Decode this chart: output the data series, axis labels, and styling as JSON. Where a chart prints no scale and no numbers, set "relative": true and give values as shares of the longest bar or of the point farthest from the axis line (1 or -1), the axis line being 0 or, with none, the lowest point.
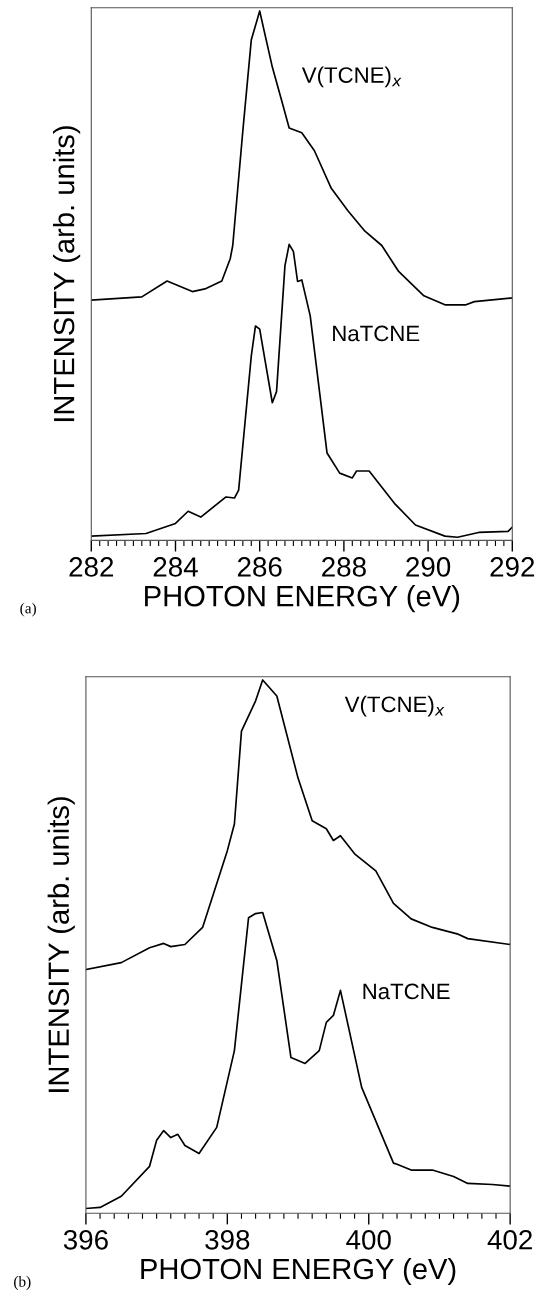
{
  "chart_data": [
    {
      "type": "line",
      "xlabel": "PHOTON ENERGY (eV)",
      "ylabel": "INTENSITY (arb. units)",
      "relative": true,
      "tick_labels": "x",
      "legend": false,
      "grid": false,
      "annotations": [
        "(a)"
      ],
      "xlim": [
        282,
        292
      ],
      "xticks": [
        282,
        {
          "value": 282.2,
          "label": null
        },
        {
          "value": 282.4,
          "label": null
        },
        {
          "value": 282.6,
          "label": null
        },
        {
          "value": 282.8,
          "label": null
        },
        {
          "value": 283,
          "label": null
        },
        {
          "value": 283.2,
          "label": null
        },
        {
          "value": 283.4,
          "label": null
        },
        {
          "value": 283.6,
          "label": null
        },
        {
          "value": 283.8,
          "label": null
        },
        284,
        {
          "value": 284.2,
          "label": null
        },
        {
          "value": 284.4,
          "label": null
        },
        {
          "value": 284.6,
          "label": null
        },
        {
          "value": 284.8,
          "label": null
        },
        {
          "value": 285,
          "label": null
        },
        {
          "value": 285.2,
          "label": null
        },
        {
          "value": 285.4,
          "label": null
        },
        {
          "value": 285.6,
          "label": null
        },
        {
          "value": 285.8,
          "label": null
        },
        286,
        {
          "value": 286.2,
          "label": null
        },
        {
          "value": 286.4,
          "label": null
        },
        {
          "value": 286.6,
          "label": null
        },
        {
          "value": 286.8,
          "label": null
        },
        {
          "value": 287,
          "label": null
        },
        {
          "value": 287.2,
          "label": null
        },
        {
          "value": 287.4,
          "label": null
        },
        {
          "value": 287.6,
          "label": null
        },
        {
          "value": 287.8,
          "label": null
        },
        288,
        {
          "value": 288.2,
          "label": null
        },
        {
          "value": 288.4,
          "label": null
        },
        {
          "value": 288.6,
          "label": null
        },
        {
          "value": 288.8,
          "label": null
        },
        {
          "value": 289,
          "label": null
        },
        {
          "value": 289.2,
          "label": null
        },
        {
          "value": 289.4,
          "label": null
        },
        {
          "value": 289.6,
          "label": null
        },
        {
          "value": 289.8,
          "label": null
        },
        290,
        {
          "value": 290.2,
          "label": null
        },
        {
          "value": 290.4,
          "label": null
        },
        {
          "value": 290.6,
          "label": null
        },
        {
          "value": 290.8,
          "label": null
        },
        {
          "value": 291,
          "label": null
        },
        {
          "value": 291.2,
          "label": null
        },
        {
          "value": 291.4,
          "label": null
        },
        {
          "value": 291.6,
          "label": null
        },
        {
          "value": 291.8,
          "label": null
        },
        292
      ],
      "series": [
        {
          "name": "V(TCNE)$_{x}$",
          "color": "#000000",
          "x": [
            282.0,
            283.2,
            283.8,
            284.4,
            284.7,
            285.1,
            285.3,
            285.36,
            285.6,
            285.8,
            286.0,
            286.3,
            286.5,
            286.7,
            287.0,
            287.3,
            287.7,
            288.1,
            288.5,
            288.9,
            289.3,
            289.9,
            290.4,
            290.9,
            291.1,
            292.0
          ],
          "values": [
            0.454,
            0.46,
            0.49,
            0.47,
            0.475,
            0.49,
            0.532,
            0.557,
            0.774,
            0.945,
            1.0,
            0.894,
            0.837,
            0.779,
            0.77,
            0.736,
            0.665,
            0.622,
            0.584,
            0.557,
            0.508,
            0.462,
            0.445,
            0.445,
            0.451,
            0.458
          ]
        },
        {
          "name": "NaTCNE",
          "color": "#000000",
          "x": [
            282.0,
            283.3,
            284.0,
            284.3,
            284.6,
            285.2,
            285.4,
            285.5,
            285.8,
            285.9,
            286.0,
            286.3,
            286.4,
            286.6,
            286.7,
            286.8,
            286.9,
            287.0,
            287.2,
            287.6,
            287.9,
            288.2,
            288.3,
            288.6,
            289.2,
            289.7,
            290.4,
            290.7,
            291.2,
            291.9,
            292.0
          ],
          "values": [
            0.008,
            0.013,
            0.032,
            0.055,
            0.044,
            0.082,
            0.08,
            0.095,
            0.348,
            0.405,
            0.399,
            0.26,
            0.281,
            0.519,
            0.559,
            0.546,
            0.489,
            0.492,
            0.424,
            0.165,
            0.127,
            0.118,
            0.131,
            0.131,
            0.07,
            0.029,
            0.008,
            0.006,
            0.015,
            0.017,
            0.025
          ]
        }
      ]
    },
    {
      "type": "line",
      "xlabel": "PHOTON ENERGY (eV)",
      "ylabel": "INTENSITY (arb. units)",
      "relative": true,
      "tick_labels": "x",
      "legend": false,
      "grid": false,
      "annotations": [
        "(b)"
      ],
      "xlim": [
        396,
        402
      ],
      "xticks": [
        396,
        {
          "value": 396.2,
          "label": null
        },
        {
          "value": 396.4,
          "label": null
        },
        {
          "value": 396.6,
          "label": null
        },
        {
          "value": 396.8,
          "label": null
        },
        {
          "value": 397,
          "label": null
        },
        {
          "value": 397.2,
          "label": null
        },
        {
          "value": 397.4,
          "label": null
        },
        {
          "value": 397.6,
          "label": null
        },
        {
          "value": 397.8,
          "label": null
        },
        398,
        {
          "value": 398.2,
          "label": null
        },
        {
          "value": 398.4,
          "label": null
        },
        {
          "value": 398.6,
          "label": null
        },
        {
          "value": 398.8,
          "label": null
        },
        {
          "value": 399,
          "label": null
        },
        {
          "value": 399.2,
          "label": null
        },
        {
          "value": 399.4,
          "label": null
        },
        {
          "value": 399.6,
          "label": null
        },
        {
          "value": 399.8,
          "label": null
        },
        400,
        {
          "value": 400.2,
          "label": null
        },
        {
          "value": 400.4,
          "label": null
        },
        {
          "value": 400.6,
          "label": null
        },
        {
          "value": 400.8,
          "label": null
        },
        {
          "value": 401,
          "label": null
        },
        {
          "value": 401.2,
          "label": null
        },
        {
          "value": 401.4,
          "label": null
        },
        {
          "value": 401.6,
          "label": null
        },
        {
          "value": 401.8,
          "label": null
        },
        402
      ],
      "series": [
        {
          "name": "V(TCNE)$_{x}$",
          "color": "#000000",
          "x": [
            396.0,
            396.5,
            396.9,
            397.1,
            397.2,
            397.4,
            397.65,
            398.0,
            398.1,
            398.2,
            398.4,
            398.5,
            398.7,
            399.0,
            399.2,
            399.4,
            399.5,
            399.6,
            399.8,
            400.1,
            400.35,
            400.6,
            400.9,
            401.25,
            401.4,
            402.0
          ],
          "values": [
            0.457,
            0.47,
            0.498,
            0.506,
            0.5,
            0.504,
            0.536,
            0.68,
            0.73,
            0.904,
            0.961,
            1.0,
            0.97,
            0.816,
            0.736,
            0.721,
            0.699,
            0.708,
            0.674,
            0.642,
            0.581,
            0.552,
            0.536,
            0.524,
            0.515,
            0.504
          ]
        },
        {
          "name": "NaTCNE",
          "color": "#000000",
          "x": [
            396.0,
            396.2,
            396.5,
            396.9,
            397.0,
            397.1,
            397.2,
            397.3,
            397.4,
            397.6,
            397.85,
            398.1,
            398.3,
            398.4,
            398.5,
            398.7,
            398.9,
            399.1,
            399.3,
            399.4,
            399.5,
            399.6,
            399.9,
            400.35,
            400.4,
            400.6,
            400.9,
            401.2,
            401.4,
            401.75,
            402.0
          ],
          "values": [
            0.009,
            0.011,
            0.032,
            0.088,
            0.137,
            0.155,
            0.142,
            0.148,
            0.127,
            0.112,
            0.161,
            0.305,
            0.554,
            0.562,
            0.564,
            0.474,
            0.292,
            0.281,
            0.305,
            0.358,
            0.371,
            0.418,
            0.236,
            0.094,
            0.092,
            0.081,
            0.081,
            0.069,
            0.056,
            0.054,
            0.051
          ]
        }
      ]
    }
  ]
}
